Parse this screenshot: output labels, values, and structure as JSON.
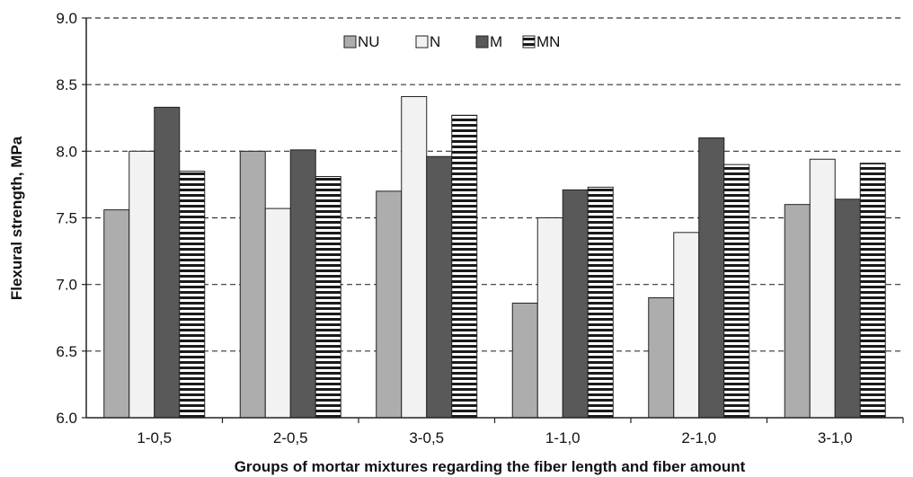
{
  "chart_data": {
    "type": "bar",
    "title": "",
    "xlabel": "Groups of mortar mixtures regarding the fiber length and fiber amount",
    "ylabel": "Flexural strength, MPa",
    "categories": [
      "1-0,5",
      "2-0,5",
      "3-0,5",
      "1-1,0",
      "2-1,0",
      "3-1,0"
    ],
    "ylim": [
      6.0,
      9.0
    ],
    "yticks": [
      "6.0",
      "6.5",
      "7.0",
      "7.5",
      "8.0",
      "8.5",
      "9.0"
    ],
    "grid": "horizontal dashed",
    "legend_position": "top-center",
    "series": [
      {
        "name": "NU",
        "values": [
          7.56,
          8.0,
          7.7,
          6.86,
          6.9,
          7.6
        ],
        "fill": "#adadad",
        "pattern": "solid"
      },
      {
        "name": "N",
        "values": [
          8.0,
          7.57,
          8.41,
          7.5,
          7.39,
          7.94
        ],
        "fill": "#f2f2f2",
        "pattern": "solid"
      },
      {
        "name": "M",
        "values": [
          8.33,
          8.01,
          7.96,
          7.71,
          8.1,
          7.64
        ],
        "fill": "#595959",
        "pattern": "solid"
      },
      {
        "name": "MN",
        "values": [
          7.85,
          7.81,
          8.27,
          7.73,
          7.9,
          7.91
        ],
        "fill": "#ffffff",
        "pattern": "horizontal-stripes"
      }
    ]
  }
}
